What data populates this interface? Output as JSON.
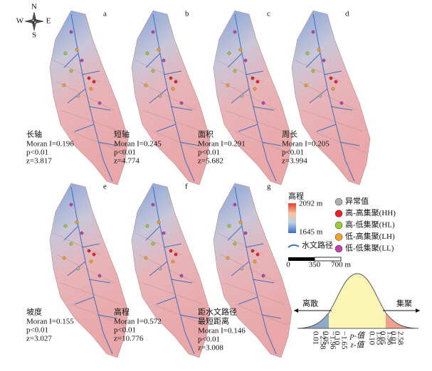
{
  "compass": {
    "n": "N",
    "s": "S",
    "w": "W",
    "e": "E"
  },
  "panels": [
    {
      "letter": "a",
      "label": [
        "长轴"
      ],
      "moran": "Moran I=0.196",
      "p": "p<0.01",
      "z": "z=3.817"
    },
    {
      "letter": "b",
      "label": [
        "短轴"
      ],
      "moran": "Moran I=0.245",
      "p": "p<0.01",
      "z": "z=4.774"
    },
    {
      "letter": "c",
      "label": [
        "面积"
      ],
      "moran": "Moran I=0.291",
      "p": "p<0.01",
      "z": "z=5.682"
    },
    {
      "letter": "d",
      "label": [
        "周长"
      ],
      "moran": "Moran I=0.205",
      "p": "p<0.01",
      "z": "z=3.994"
    },
    {
      "letter": "e",
      "label": [
        "坡度"
      ],
      "moran": "Moran I=0.155",
      "p": "p<0.01",
      "z": "z=3.027"
    },
    {
      "letter": "f",
      "label": [
        "高程"
      ],
      "moran": "Moran I=0.572",
      "p": "p<0.01",
      "z": "z=10.776"
    },
    {
      "letter": "g",
      "label": [
        "距水文路径",
        "最短距离"
      ],
      "moran": "Moran I=0.146",
      "p": "p<0.01",
      "z": "z=3.008"
    }
  ],
  "legend": {
    "title": "高程",
    "max": "2092 m",
    "min": "1645 m",
    "stream": "水文路径",
    "classes": [
      {
        "name": "异常值",
        "color": "#b0b0b0"
      },
      {
        "name": "高-高集聚(HH)",
        "color": "#e8202a"
      },
      {
        "name": "高-低集聚(HL)",
        "color": "#9acd32"
      },
      {
        "name": "低-高集聚(LH)",
        "color": "#f5a02a"
      },
      {
        "name": "低-低集聚(LL)",
        "color": "#c040b0"
      }
    ]
  },
  "scale": {
    "labels": [
      "0",
      "350",
      "700 m"
    ]
  },
  "curve": {
    "left": "离散",
    "right": "集聚",
    "p": "p-值",
    "z": "z-值",
    "ticks": [
      {
        "p": "0.01",
        "z": "−2.58"
      },
      {
        "p": "0.05",
        "z": "−1.96"
      },
      {
        "p": "0.10",
        "z": "−1.65"
      },
      {
        "p": "0.10",
        "z": "1.65"
      },
      {
        "p": "0.05",
        "z": "1.96"
      },
      {
        "p": "0.01",
        "z": "2.58"
      }
    ]
  }
}
